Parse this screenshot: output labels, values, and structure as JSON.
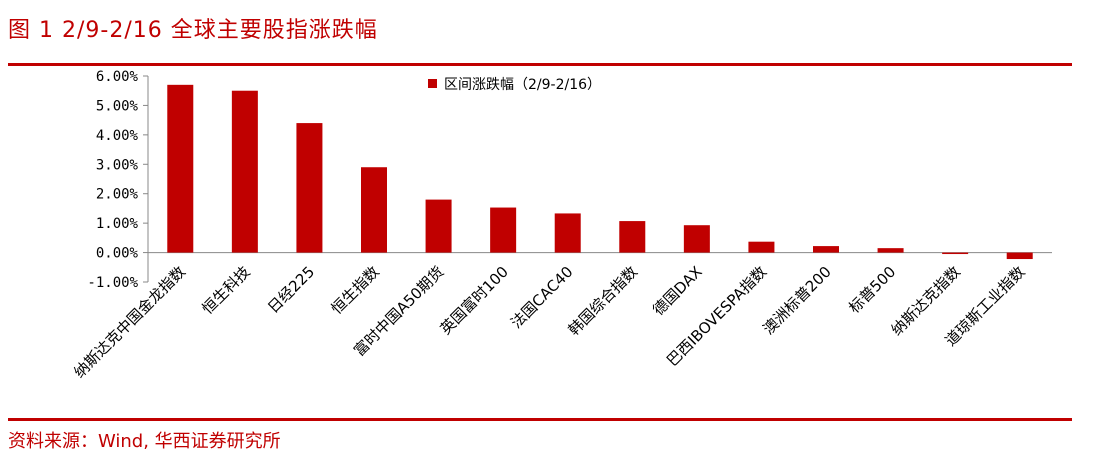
{
  "header": {
    "title": "图 1 2/9-2/16 全球主要股指涨跌幅"
  },
  "footer": {
    "source": "资料来源：Wind, 华西证券研究所"
  },
  "colors": {
    "accent": "#c00000",
    "bar": "#c00000"
  },
  "chart_data": {
    "type": "bar",
    "title": "",
    "xlabel": "",
    "ylabel": "",
    "legend": "top-center",
    "grid": false,
    "ylim": [
      -0.01,
      0.06
    ],
    "yticks": [
      -0.01,
      0.0,
      0.01,
      0.02,
      0.03,
      0.04,
      0.05,
      0.06
    ],
    "ytick_labels": [
      "-1.00%",
      "0.00%",
      "1.00%",
      "2.00%",
      "3.00%",
      "4.00%",
      "5.00%",
      "6.00%"
    ],
    "categories": [
      "纳斯达克中国金龙指数",
      "恒生科技",
      "日经225",
      "恒生指数",
      "富时中国A50期货",
      "英国富时100",
      "法国CAC40",
      "韩国综合指数",
      "德国DAX",
      "巴西IBOVESPA指数",
      "澳洲标普200",
      "标普500",
      "纳斯达克指数",
      "道琼斯工业指数"
    ],
    "series": [
      {
        "name": "区间涨跌幅（2/9-2/16）",
        "values": [
          0.057,
          0.055,
          0.044,
          0.029,
          0.018,
          0.0153,
          0.0133,
          0.0107,
          0.0093,
          0.0037,
          0.0022,
          0.0015,
          -0.0005,
          -0.0022
        ]
      }
    ]
  }
}
